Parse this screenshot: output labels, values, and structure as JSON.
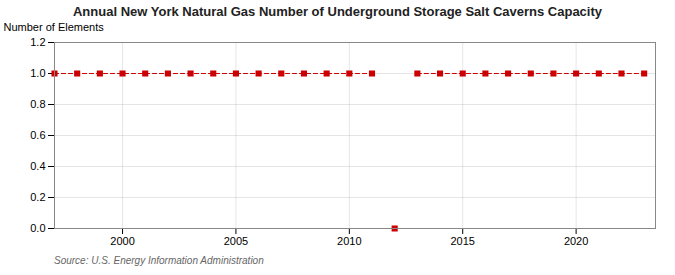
{
  "chart_data": {
    "type": "line",
    "title": "Annual New York Natural Gas Number of Underground Storage Salt Caverns Capacity",
    "ylabel": "Number of Elements",
    "source": "Source: U.S. Energy Information Administration",
    "x": [
      1997,
      1998,
      1999,
      2000,
      2001,
      2002,
      2003,
      2004,
      2005,
      2006,
      2007,
      2008,
      2009,
      2010,
      2011,
      2012,
      2013,
      2014,
      2015,
      2016,
      2017,
      2018,
      2019,
      2020,
      2021,
      2022,
      2023
    ],
    "series": [
      {
        "type": "line",
        "color": "#cc0000",
        "line_style": "dashed",
        "marker": "square",
        "values": [
          1,
          1,
          1,
          1,
          1,
          1,
          1,
          1,
          1,
          1,
          1,
          1,
          1,
          1,
          1,
          null,
          1,
          1,
          1,
          1,
          1,
          1,
          1,
          1,
          1,
          1,
          1
        ]
      },
      {
        "type": "scatter",
        "color": "#cc0000",
        "marker": "square",
        "values": [
          null,
          null,
          null,
          null,
          null,
          null,
          null,
          null,
          null,
          null,
          null,
          null,
          null,
          null,
          null,
          0,
          null,
          null,
          null,
          null,
          null,
          null,
          null,
          null,
          null,
          null,
          null
        ]
      }
    ],
    "xlim": [
      1997,
      2023.5
    ],
    "xticks": [
      2000,
      2005,
      2010,
      2015,
      2020
    ],
    "ylim": [
      0.0,
      1.2
    ],
    "yticks": [
      {
        "value": 0.0,
        "label": "0.0"
      },
      {
        "value": 0.2,
        "label": "0.2"
      },
      {
        "value": 0.4,
        "label": "0.4"
      },
      {
        "value": 0.6,
        "label": "0.6"
      },
      {
        "value": 0.8,
        "label": "0.8"
      },
      {
        "value": 1.0,
        "label": "1.0"
      },
      {
        "value": 1.2,
        "label": "1.2"
      }
    ],
    "grid": true
  }
}
